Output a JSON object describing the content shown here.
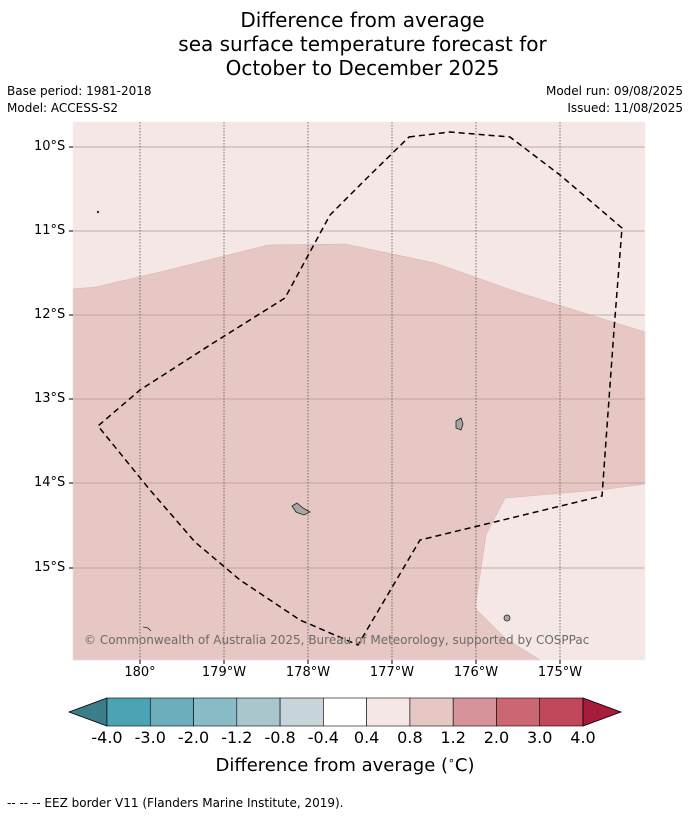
{
  "title": {
    "line1": "Difference from average",
    "line2": "sea surface temperature forecast for",
    "line3": "October to December 2025"
  },
  "meta": {
    "base_period": "Base period: 1981-2018",
    "model": "Model: ACCESS-S2",
    "model_run": "Model run: 09/08/2025",
    "issued": "Issued: 11/08/2025"
  },
  "map": {
    "latitude_labels": [
      "10°S",
      "11°S",
      "12°S",
      "13°S",
      "14°S",
      "15°S"
    ],
    "longitude_labels": [
      "180°",
      "179°W",
      "178°W",
      "177°W",
      "176°W",
      "175°W"
    ],
    "copyright": "© Commonwealth of Australia 2025, Bureau of Meteorology, supported by COSPPac",
    "colors": {
      "anomaly_0_4_to_0_8": "#f4e7e6",
      "anomaly_0_8_to_1_2": "#e7c7c3",
      "land": "#a6a6a6",
      "eez_border": "#000000"
    }
  },
  "colorbar": {
    "ticks": [
      "-4.0",
      "-3.0",
      "-2.0",
      "-1.2",
      "-0.8",
      "-0.4",
      "0.4",
      "0.8",
      "1.2",
      "2.0",
      "3.0",
      "4.0"
    ],
    "colors": [
      "#3b7d88",
      "#4aa4b5",
      "#6aaebb",
      "#8abcc8",
      "#a9c6cd",
      "#c7d5da",
      "#ffffff",
      "#f4e7e6",
      "#e7c7c3",
      "#d6939a",
      "#cb6673",
      "#c0485a",
      "#a81c3b"
    ],
    "label": "Difference from average ($^\\circ$C)",
    "label_text": "Difference from average (",
    "label_unit": "C)"
  },
  "footnote": "--  --  -- EEZ border V11 (Flanders Marine Institute, 2019)."
}
